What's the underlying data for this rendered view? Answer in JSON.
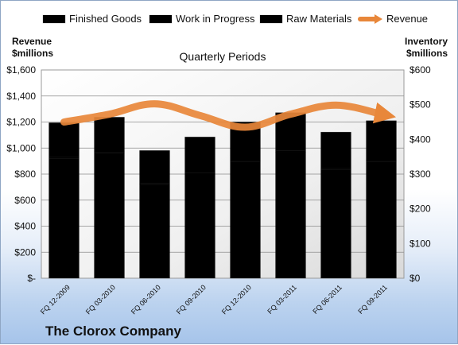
{
  "chart_data": {
    "type": "bar",
    "stacked": true,
    "title": "Quarterly Periods",
    "footer": "The Clorox Company",
    "categories": [
      "FQ 12-2009",
      "FQ 03-2010",
      "FQ 06-2010",
      "FQ 09-2010",
      "FQ 12-2010",
      "FQ 03-2011",
      "FQ 06-2011",
      "FQ 09-2011"
    ],
    "series": [
      {
        "name": "Finished Goods",
        "axis": "right",
        "color": "#c0262a",
        "values": [
          345,
          360,
          270,
          300,
          335,
          363,
          313,
          336
        ]
      },
      {
        "name": "Work in Progress",
        "axis": "right",
        "color": "#5b7fbd",
        "values": [
          4,
          4,
          3,
          4,
          4,
          4,
          4,
          4
        ]
      },
      {
        "name": "Raw Materials",
        "axis": "right",
        "color": "#8fad45",
        "values": [
          99,
          100,
          95,
          103,
          111,
          110,
          104,
          114
        ]
      },
      {
        "name": "Revenue",
        "axis": "left",
        "type": "line",
        "color": "#e8873a",
        "values": [
          1200,
          1260,
          1340,
          1250,
          1160,
          1260,
          1330,
          1260
        ]
      }
    ],
    "ylabel_left": "Revenue\n$millions",
    "ylabel_right": "Inventory\n$millions",
    "ylim_left": [
      0,
      1600
    ],
    "ylim_right": [
      0,
      600
    ],
    "yticks_left": [
      "$-",
      "$200",
      "$400",
      "$600",
      "$800",
      "$1,000",
      "$1,200",
      "$1,400",
      "$1,600"
    ],
    "yticks_right": [
      "$0",
      "$100",
      "$200",
      "$300",
      "$400",
      "$500",
      "$600"
    ],
    "legend_position": "top",
    "grid": true
  }
}
